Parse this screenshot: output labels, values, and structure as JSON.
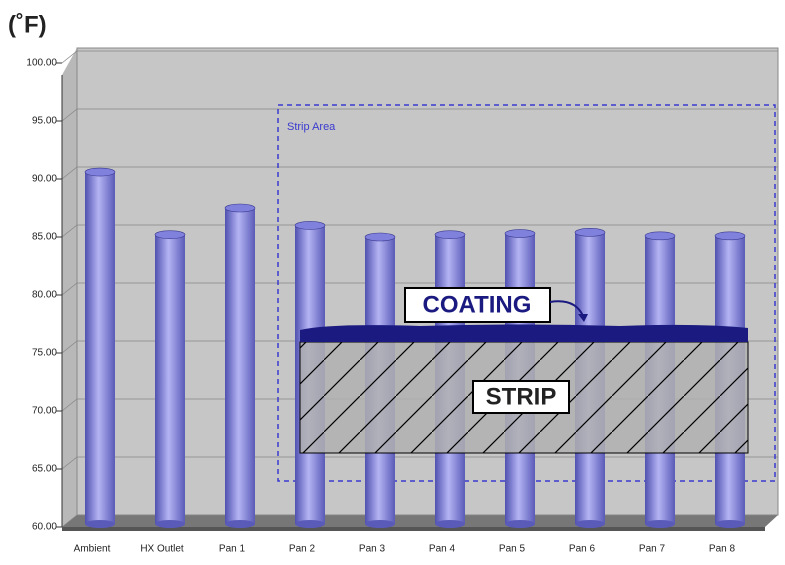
{
  "chart_data": {
    "type": "bar",
    "y_label": "(˚F)",
    "categories": [
      "Ambient",
      "HX Outlet",
      "Pan 1",
      "Pan 2",
      "Pan 3",
      "Pan 4",
      "Pan 5",
      "Pan 6",
      "Pan 7",
      "Pan 8"
    ],
    "values": [
      90.6,
      85.2,
      87.5,
      86.0,
      85.0,
      85.2,
      85.3,
      85.4,
      85.1,
      85.1
    ],
    "color": "#8080dd",
    "ylim": [
      60,
      100
    ],
    "yticks": [
      {
        "value": 60,
        "label": "60.00"
      },
      {
        "value": 65,
        "label": "65.00"
      },
      {
        "value": 70,
        "label": "70.00"
      },
      {
        "value": 75,
        "label": "75.00"
      },
      {
        "value": 80,
        "label": "80.00"
      },
      {
        "value": 85,
        "label": "85.00"
      },
      {
        "value": 90,
        "label": "90.00"
      },
      {
        "value": 95,
        "label": "95.00"
      },
      {
        "value": 100,
        "label": "100.00"
      }
    ],
    "grid": true,
    "annotations": {
      "strip_area": "Strip Area",
      "coating": "COATING",
      "strip": "STRIP"
    }
  }
}
